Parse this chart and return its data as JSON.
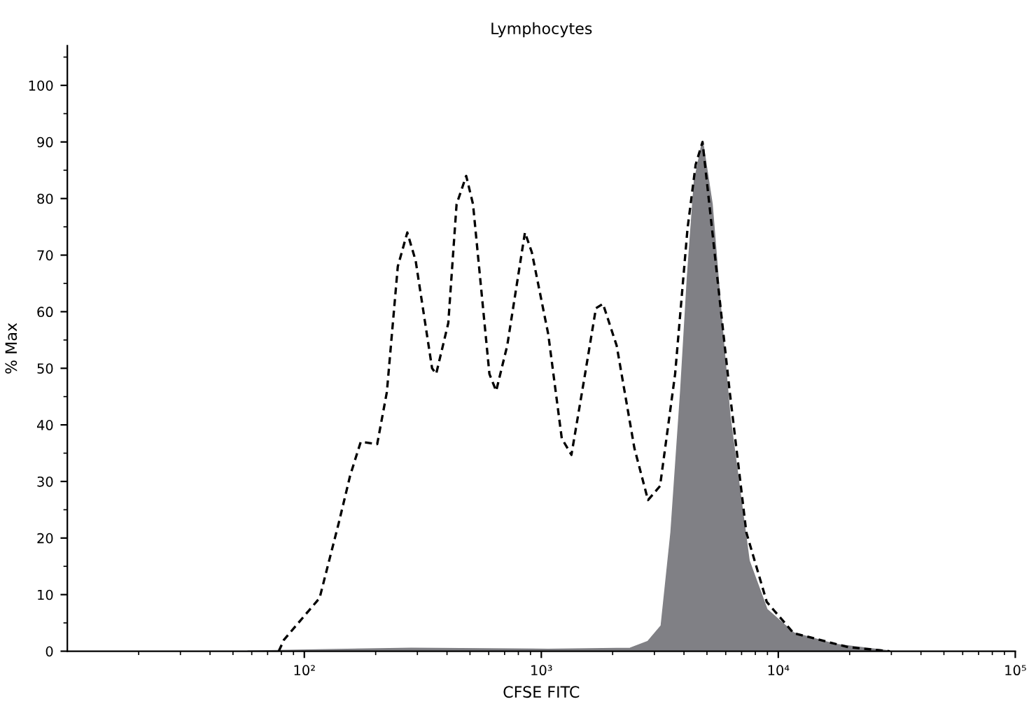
{
  "chart_data": {
    "type": "line",
    "title": "Lymphocytes",
    "xlabel": "CFSE FITC",
    "ylabel": "% Max",
    "log": "x",
    "xlim": [
      10,
      100000
    ],
    "xticks": [
      {
        "value": 100,
        "label": "10²"
      },
      {
        "value": 1000,
        "label": "10³"
      },
      {
        "value": 10000,
        "label": "10⁴"
      },
      {
        "value": 100000,
        "label": "10⁵"
      }
    ],
    "ylim": [
      0,
      107
    ],
    "yticks": [
      0,
      10,
      20,
      30,
      40,
      50,
      60,
      70,
      80,
      90,
      100
    ],
    "grid": false,
    "legend": false,
    "series": [
      {
        "type": "area",
        "color": "#808085",
        "x": [
          58,
          283,
          1070,
          2370,
          2820,
          3210,
          3530,
          3880,
          4140,
          4430,
          4790,
          5250,
          5770,
          6240,
          7520,
          8940,
          11600,
          17300,
          29500
        ],
        "values": [
          0,
          0.5,
          0.3,
          0.5,
          1.7,
          4.5,
          21,
          46,
          66,
          83,
          90,
          79,
          58,
          41.6,
          16,
          7.4,
          3.2,
          1.2,
          0
        ]
      },
      {
        "color": "#000000",
        "line_style": "dashed",
        "x": [
          78,
          82,
          116,
          140,
          156,
          173,
          203,
          223,
          248,
          272,
          295,
          346,
          360,
          405,
          439,
          482,
          515,
          604,
          645,
          718,
          853,
          912,
          1070,
          1220,
          1340,
          1530,
          1700,
          1820,
          2080,
          2470,
          2820,
          3170,
          3670,
          4140,
          4480,
          4790,
          5250,
          6240,
          7330,
          8940,
          11600,
          19800,
          29500
        ],
        "values": [
          0,
          2,
          9.4,
          22.8,
          31,
          37,
          36.6,
          45.8,
          68,
          74,
          69,
          50,
          49,
          58,
          79,
          84,
          79,
          49,
          46,
          54,
          74,
          70.5,
          56,
          37.6,
          34.7,
          49,
          60.6,
          61.4,
          54,
          35.9,
          26.7,
          29.2,
          49,
          74.7,
          86,
          90,
          74.7,
          45.8,
          21,
          8.7,
          3.2,
          0.7,
          0
        ]
      }
    ]
  }
}
